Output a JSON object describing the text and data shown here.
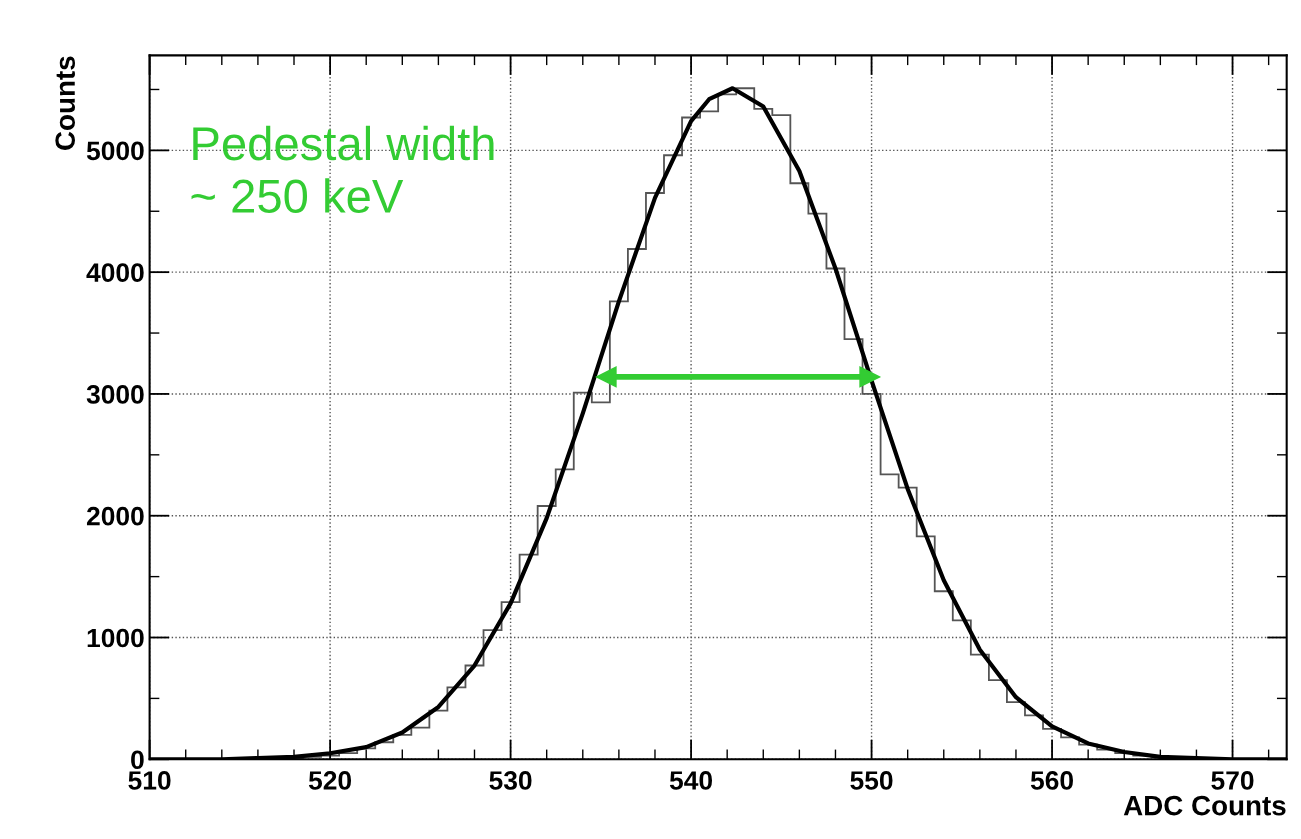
{
  "chart_data": {
    "type": "histogram",
    "xlabel": "ADC Counts",
    "ylabel": "Counts",
    "xlim": [
      510,
      573
    ],
    "ylim": [
      0,
      5780
    ],
    "xticks": [
      510,
      520,
      530,
      540,
      550,
      560,
      570
    ],
    "yticks": [
      0,
      1000,
      2000,
      3000,
      4000,
      5000
    ],
    "grid": true,
    "color": "#555555",
    "bins": [
      509.5,
      510.5,
      511.5,
      512.5,
      513.5,
      514.5,
      515.5,
      516.5,
      517.5,
      518.5,
      519.5,
      520.5,
      521.5,
      522.5,
      523.5,
      524.5,
      525.5,
      526.5,
      527.5,
      528.5,
      529.5,
      530.5,
      531.5,
      532.5,
      533.5,
      534.5,
      535.5,
      536.5,
      537.5,
      538.5,
      539.5,
      540.5,
      541.5,
      542.5,
      543.5,
      544.5,
      545.5,
      546.5,
      547.5,
      548.5,
      549.5,
      550.5,
      551.5,
      552.5,
      553.5,
      554.5,
      555.5,
      556.5,
      557.5,
      558.5,
      559.5,
      560.5,
      561.5,
      562.5,
      563.5,
      564.5,
      565.5,
      566.5,
      567.5,
      568.5,
      569.5,
      570.5,
      571.5,
      572.5
    ],
    "values": [
      0,
      0,
      0,
      0,
      0,
      0,
      0,
      10,
      10,
      20,
      30,
      50,
      90,
      140,
      200,
      260,
      400,
      590,
      770,
      1060,
      1290,
      1680,
      2080,
      2380,
      3010,
      2930,
      3760,
      4190,
      4650,
      4960,
      5270,
      5320,
      5460,
      5510,
      5340,
      5290,
      4730,
      4480,
      4030,
      3450,
      3000,
      2340,
      2230,
      1830,
      1380,
      1140,
      860,
      650,
      470,
      360,
      250,
      180,
      120,
      80,
      50,
      30,
      20,
      10,
      10,
      0,
      0,
      0,
      0
    ],
    "series": [
      {
        "type": "line",
        "color": "#000000",
        "x": [
          510,
          512,
          514,
          516,
          518,
          520,
          522,
          524,
          526,
          528,
          530,
          532,
          534,
          536,
          538,
          540,
          541,
          542.3,
          544,
          546,
          548,
          550,
          552,
          554,
          556,
          558,
          560,
          562,
          564,
          566,
          568,
          570,
          572,
          573
        ],
        "values": [
          0,
          0,
          0,
          10,
          20,
          50,
          100,
          220,
          430,
          770,
          1280,
          1980,
          2840,
          3760,
          4610,
          5240,
          5420,
          5510,
          5360,
          4830,
          4030,
          3110,
          2220,
          1470,
          900,
          510,
          270,
          130,
          60,
          20,
          10,
          0,
          0,
          0
        ]
      },
      {
        "type": "line",
        "marker": "triangle",
        "color": "#33cc33",
        "x": [
          535.3,
          549.9
        ],
        "values": [
          3140,
          3140
        ]
      }
    ],
    "annotations": [
      "Pedestal width\n~ 250 keV"
    ]
  }
}
